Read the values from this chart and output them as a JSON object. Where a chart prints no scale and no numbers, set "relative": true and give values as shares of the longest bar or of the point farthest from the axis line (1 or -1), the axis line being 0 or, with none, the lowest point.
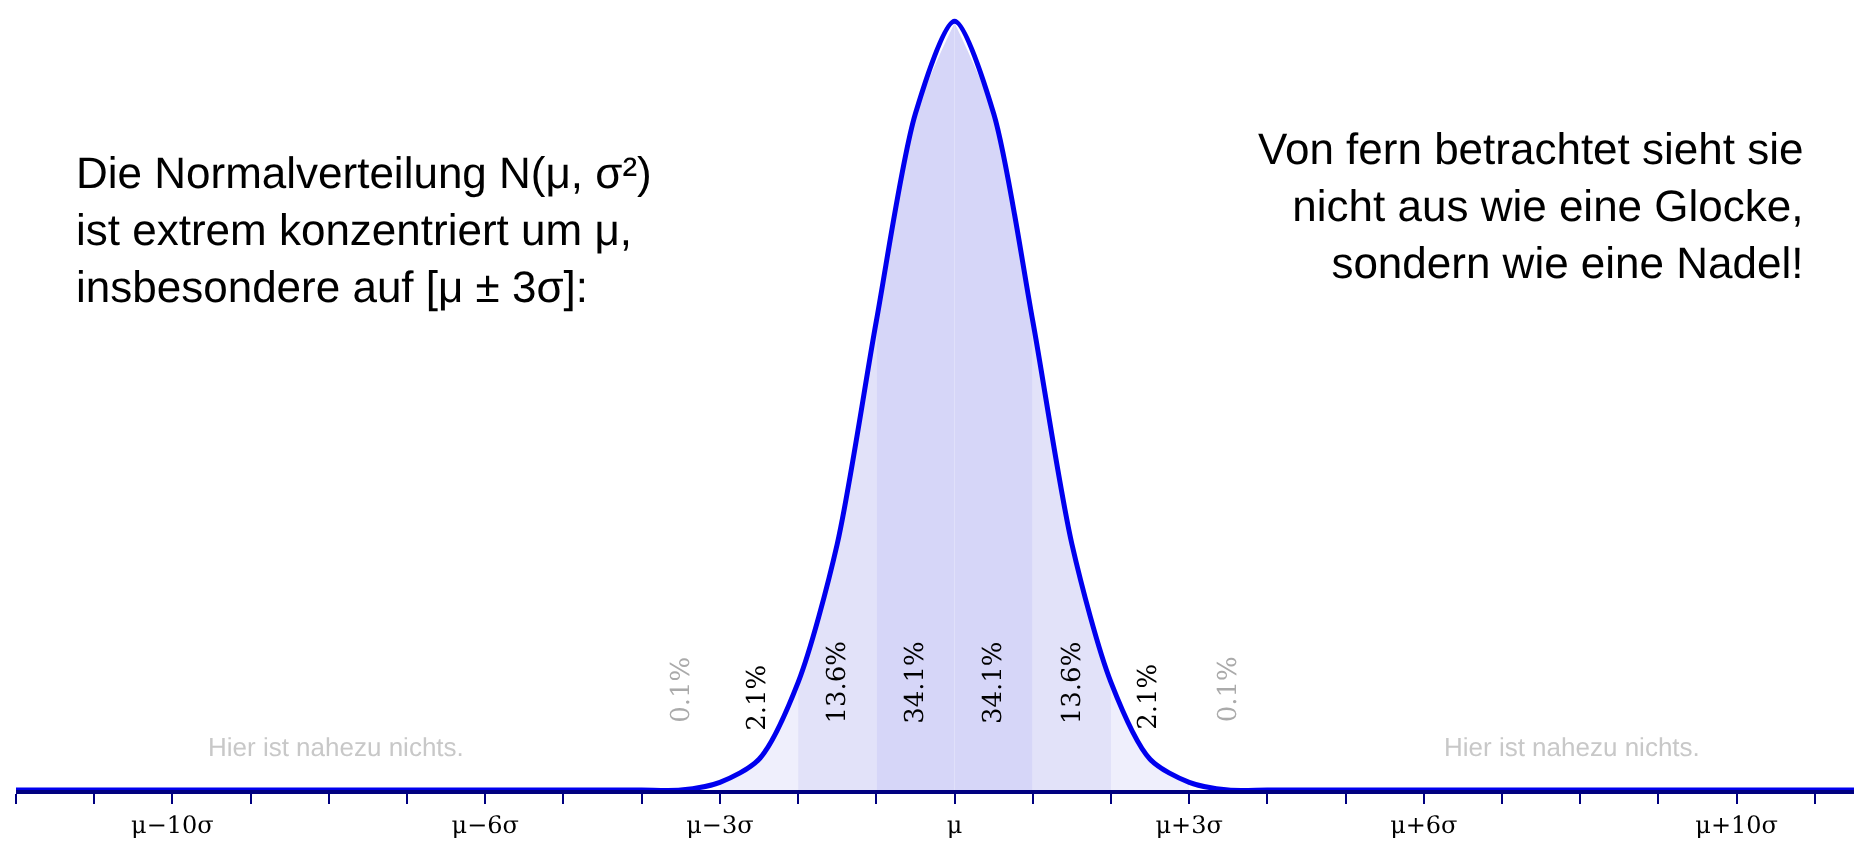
{
  "chart_data": {
    "type": "line",
    "relative": true,
    "categories": [
      null,
      null,
      null,
      null,
      "μ−10σ",
      null,
      null,
      null,
      null,
      null,
      null,
      null,
      "μ−6σ",
      null,
      null,
      null,
      null,
      null,
      "μ−3σ",
      null,
      null,
      null,
      null,
      null,
      "μ",
      null,
      null,
      null,
      null,
      null,
      "μ+3σ",
      null,
      null,
      null,
      null,
      null,
      "μ+6σ",
      null,
      null,
      null,
      null,
      null,
      null,
      null,
      "μ+10σ",
      null,
      null,
      null
    ],
    "series": [
      {
        "type": "area",
        "color": "#efeffc",
        "values": [
          null,
          null,
          null,
          null,
          null,
          null,
          null,
          null,
          null,
          null,
          null,
          null,
          null,
          null,
          null,
          null,
          null,
          null,
          0.01,
          0.04,
          0.14,
          null,
          null,
          null,
          null,
          null,
          null,
          null,
          null,
          null,
          null,
          null,
          null,
          null,
          null,
          null,
          null,
          null,
          null,
          null,
          null,
          null,
          null,
          null,
          null,
          null,
          null,
          null
        ]
      },
      {
        "type": "area",
        "color": "#e2e2f9",
        "values": [
          null,
          null,
          null,
          null,
          null,
          null,
          null,
          null,
          null,
          null,
          null,
          null,
          null,
          null,
          null,
          null,
          null,
          null,
          null,
          null,
          0.14,
          0.32,
          0.61,
          null,
          null,
          null,
          null,
          null,
          null,
          null,
          null,
          null,
          null,
          null,
          null,
          null,
          null,
          null,
          null,
          null,
          null,
          null,
          null,
          null,
          null,
          null,
          null,
          null
        ]
      },
      {
        "type": "area",
        "color": "#d6d6f8",
        "values": [
          null,
          null,
          null,
          null,
          null,
          null,
          null,
          null,
          null,
          null,
          null,
          null,
          null,
          null,
          null,
          null,
          null,
          null,
          null,
          null,
          null,
          null,
          0.61,
          0.88,
          1,
          null,
          null,
          null,
          null,
          null,
          null,
          null,
          null,
          null,
          null,
          null,
          null,
          null,
          null,
          null,
          null,
          null,
          null,
          null,
          null,
          null,
          null,
          null
        ]
      },
      {
        "type": "area",
        "color": "#d6d6f8",
        "values": [
          null,
          null,
          null,
          null,
          null,
          null,
          null,
          null,
          null,
          null,
          null,
          null,
          null,
          null,
          null,
          null,
          null,
          null,
          null,
          null,
          null,
          null,
          null,
          null,
          1,
          0.88,
          0.61,
          null,
          null,
          null,
          null,
          null,
          null,
          null,
          null,
          null,
          null,
          null,
          null,
          null,
          null,
          null,
          null,
          null,
          null,
          null,
          null,
          null
        ]
      },
      {
        "type": "area",
        "color": "#e2e2f9",
        "values": [
          null,
          null,
          null,
          null,
          null,
          null,
          null,
          null,
          null,
          null,
          null,
          null,
          null,
          null,
          null,
          null,
          null,
          null,
          null,
          null,
          null,
          null,
          null,
          null,
          null,
          null,
          0.61,
          0.32,
          0.14,
          null,
          null,
          null,
          null,
          null,
          null,
          null,
          null,
          null,
          null,
          null,
          null,
          null,
          null,
          null,
          null,
          null,
          null,
          null
        ]
      },
      {
        "type": "area",
        "color": "#efeffc",
        "values": [
          null,
          null,
          null,
          null,
          null,
          null,
          null,
          null,
          null,
          null,
          null,
          null,
          null,
          null,
          null,
          null,
          null,
          null,
          null,
          null,
          null,
          null,
          null,
          null,
          null,
          null,
          null,
          null,
          0.14,
          0.04,
          0.01,
          null,
          null,
          null,
          null,
          null,
          null,
          null,
          null,
          null,
          null,
          null,
          null,
          null,
          null,
          null,
          null,
          null
        ]
      },
      {
        "color": "#0000ee",
        "values": [
          0,
          0,
          0,
          0,
          0,
          0,
          0,
          0,
          0,
          0,
          0,
          0,
          0,
          0,
          0,
          0,
          0,
          0,
          0.01,
          0.04,
          0.14,
          0.32,
          0.61,
          0.88,
          1,
          0.88,
          0.61,
          0.32,
          0.14,
          0.04,
          0.01,
          0,
          0,
          0,
          0,
          0,
          0,
          0,
          0,
          0,
          0,
          0,
          0,
          0,
          0,
          0,
          0,
          0
        ]
      }
    ],
    "annotations": [
      "Die Normalverteilung N(μ, σ²)\nist extrem konzentriert um μ,\ninsbesondere auf [μ ± 3σ]:",
      "Von fern betrachtet sieht sie\nnicht aus wie eine Glocke,\nsondern wie eine Nadel!",
      "0.1%",
      "2.1%",
      "13.6%",
      "34.1%",
      "34.1%",
      "13.6%",
      "2.1%",
      "0.1%",
      "Hier ist nahezu nichts.",
      "Hier ist nahezu nichts."
    ]
  }
}
